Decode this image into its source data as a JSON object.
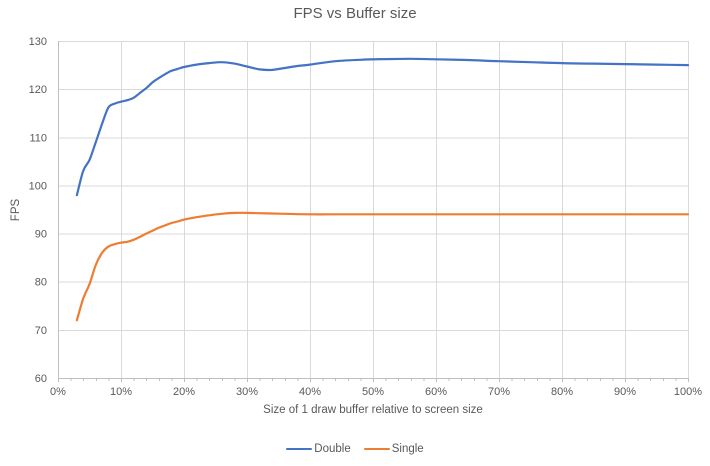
{
  "chart_data": {
    "type": "line",
    "title": "FPS vs Buffer size",
    "xlabel": "Size of 1 draw buffer relative to screen size",
    "ylabel": "FPS",
    "xlim": [
      0,
      100
    ],
    "ylim": [
      60,
      130
    ],
    "grid": true,
    "legend_position": "bottom",
    "x_tick_labels": [
      "0%",
      "10%",
      "20%",
      "30%",
      "40%",
      "50%",
      "60%",
      "70%",
      "80%",
      "90%",
      "100%"
    ],
    "x_minor_tick_step": 2,
    "y_ticks": [
      60,
      70,
      80,
      90,
      100,
      110,
      120,
      130
    ],
    "colors": {
      "grid": "#D9D9D9",
      "axis": "#BFBFBF",
      "text": "#595959",
      "accent_blue": "#4472C4",
      "accent_orange": "#ED7D31"
    },
    "series": [
      {
        "name": "Double",
        "color": "#4472C4",
        "points": [
          [
            3,
            98
          ],
          [
            4,
            103
          ],
          [
            5,
            105.3
          ],
          [
            6,
            109
          ],
          [
            7,
            112.8
          ],
          [
            8,
            116.2
          ],
          [
            9,
            117
          ],
          [
            10,
            117.4
          ],
          [
            11,
            117.7
          ],
          [
            12,
            118.2
          ],
          [
            13,
            119.2
          ],
          [
            14,
            120.2
          ],
          [
            15,
            121.4
          ],
          [
            16,
            122.3
          ],
          [
            17,
            123.1
          ],
          [
            18,
            123.8
          ],
          [
            19,
            124.2
          ],
          [
            20,
            124.6
          ],
          [
            22,
            125.1
          ],
          [
            24,
            125.4
          ],
          [
            26,
            125.6
          ],
          [
            28,
            125.3
          ],
          [
            30,
            124.7
          ],
          [
            32,
            124.1
          ],
          [
            34,
            124
          ],
          [
            36,
            124.4
          ],
          [
            38,
            124.8
          ],
          [
            40,
            125.1
          ],
          [
            44,
            125.8
          ],
          [
            48,
            126.1
          ],
          [
            52,
            126.25
          ],
          [
            56,
            126.3
          ],
          [
            60,
            126.2
          ],
          [
            65,
            126.05
          ],
          [
            70,
            125.8
          ],
          [
            75,
            125.6
          ],
          [
            80,
            125.4
          ],
          [
            85,
            125.3
          ],
          [
            90,
            125.2
          ],
          [
            95,
            125.1
          ],
          [
            100,
            125
          ]
        ]
      },
      {
        "name": "Single",
        "color": "#ED7D31",
        "points": [
          [
            3,
            72
          ],
          [
            4,
            76.5
          ],
          [
            5,
            79.5
          ],
          [
            6,
            83.5
          ],
          [
            7,
            86
          ],
          [
            8,
            87.3
          ],
          [
            9,
            87.8
          ],
          [
            10,
            88.1
          ],
          [
            11,
            88.3
          ],
          [
            12,
            88.7
          ],
          [
            13,
            89.3
          ],
          [
            14,
            90
          ],
          [
            15,
            90.6
          ],
          [
            16,
            91.2
          ],
          [
            17,
            91.7
          ],
          [
            18,
            92.2
          ],
          [
            19,
            92.5
          ],
          [
            20,
            92.9
          ],
          [
            22,
            93.4
          ],
          [
            24,
            93.8
          ],
          [
            26,
            94.1
          ],
          [
            28,
            94.3
          ],
          [
            30,
            94.3
          ],
          [
            33,
            94.2
          ],
          [
            36,
            94.1
          ],
          [
            40,
            94
          ],
          [
            45,
            94
          ],
          [
            50,
            94
          ],
          [
            55,
            94
          ],
          [
            60,
            94
          ],
          [
            65,
            94
          ],
          [
            70,
            94
          ],
          [
            75,
            94
          ],
          [
            80,
            94
          ],
          [
            85,
            94
          ],
          [
            90,
            94
          ],
          [
            95,
            94
          ],
          [
            100,
            94
          ]
        ]
      }
    ]
  }
}
